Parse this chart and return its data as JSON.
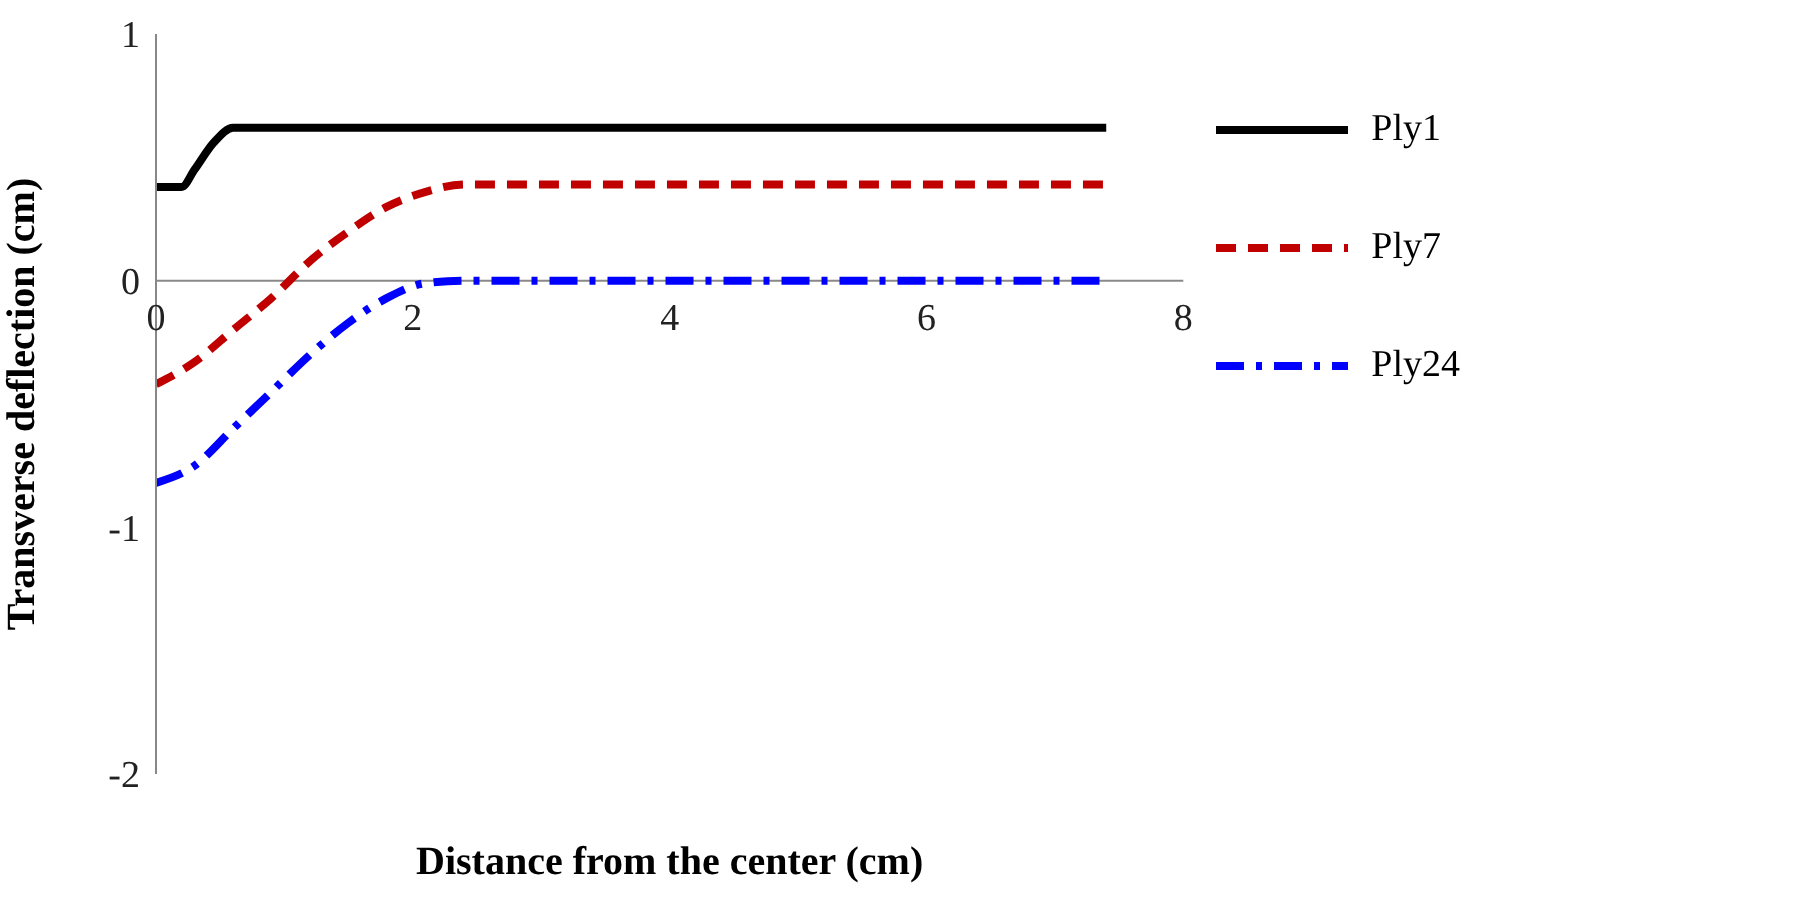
{
  "chart_data": {
    "type": "line",
    "xlabel": "Distance from the center (cm)",
    "ylabel": "Transverse deflection (cm)",
    "xlim": [
      0,
      8
    ],
    "xticks": [
      0,
      2,
      4,
      6,
      8
    ],
    "ylim": [
      -2,
      1
    ],
    "yticks": [
      -2,
      -1,
      0,
      1
    ],
    "grid": false,
    "legend": "right",
    "marker": "none",
    "series": [
      {
        "name": "Ply1",
        "color": "#000000",
        "line_style": "solid",
        "x": [
          0,
          0.2,
          0.3,
          0.45,
          0.6,
          0.75,
          7.4
        ],
        "values": [
          0.38,
          0.38,
          0.45,
          0.56,
          0.62,
          0.62,
          0.62
        ]
      },
      {
        "name": "Ply7",
        "color": "#c00000",
        "line_style": "dashed",
        "x": [
          0,
          0.3,
          0.6,
          0.9,
          1.2,
          1.5,
          1.8,
          2.1,
          2.4,
          7.4
        ],
        "values": [
          -0.42,
          -0.33,
          -0.2,
          -0.07,
          0.08,
          0.2,
          0.3,
          0.36,
          0.39,
          0.39
        ]
      },
      {
        "name": "Ply24",
        "color": "#0000ff",
        "line_style": "dashdot",
        "x": [
          0,
          0.3,
          0.6,
          0.9,
          1.2,
          1.5,
          1.8,
          2.1,
          2.4,
          7.35
        ],
        "values": [
          -0.82,
          -0.75,
          -0.6,
          -0.45,
          -0.3,
          -0.17,
          -0.07,
          -0.01,
          0,
          0
        ]
      }
    ]
  }
}
